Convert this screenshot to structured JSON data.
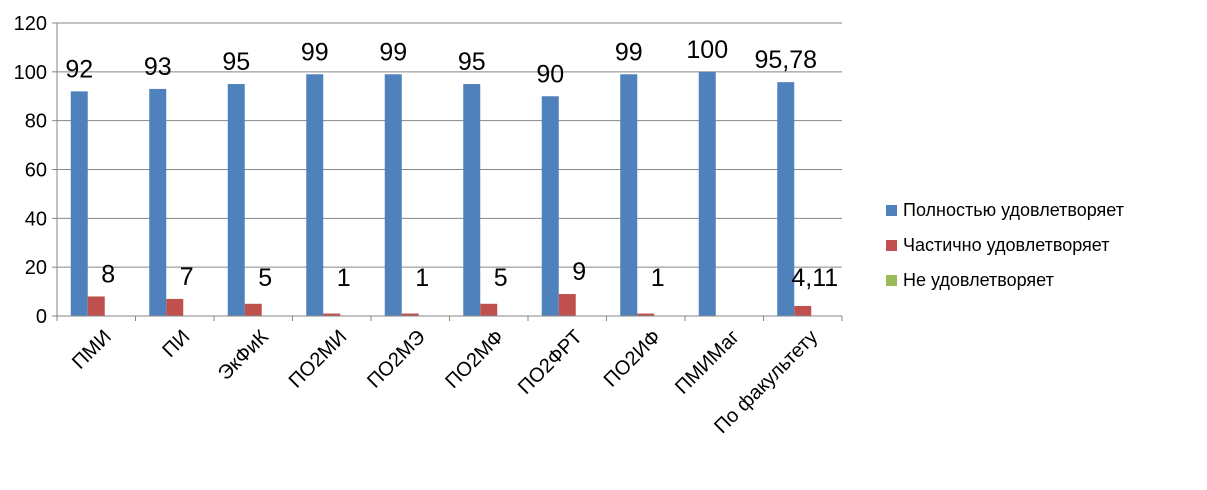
{
  "chart_data": {
    "type": "bar",
    "categories": [
      "ПМИ",
      "ПИ",
      "ЭкФиК",
      "ПО2МИ",
      "ПО2МЭ",
      "ПО2МФ",
      "ПО2ФРТ",
      "ПО2ИФ",
      "ПМИМаг",
      "По факультету"
    ],
    "series": [
      {
        "name": "Полностью удовлетворяет",
        "color": "#4F81BD",
        "values": [
          92,
          93,
          95,
          99,
          99,
          95,
          90,
          99,
          100,
          95.78
        ],
        "labels": [
          "92",
          "93",
          "95",
          "99",
          "99",
          "95",
          "90",
          "99",
          "100",
          "95,78"
        ]
      },
      {
        "name": "Частично удовлетворяет",
        "color": "#C0504D",
        "values": [
          8,
          7,
          5,
          1,
          1,
          5,
          9,
          1,
          0,
          4.11
        ],
        "labels": [
          "8",
          "7",
          "5",
          "1",
          "1",
          "5",
          "9",
          "1",
          "",
          "4,11"
        ]
      },
      {
        "name": "Не удовлетворяет",
        "color": "#9BBB59",
        "values": [
          0,
          0,
          0,
          0,
          0,
          0,
          0,
          0,
          0,
          0
        ],
        "labels": [
          "",
          "",
          "",
          "",
          "",
          "",
          "",
          "",
          "",
          ""
        ]
      }
    ],
    "ylim": [
      0,
      120
    ],
    "yticks": [
      0,
      20,
      40,
      60,
      80,
      100,
      120
    ],
    "grid": true,
    "legend_position": "right"
  }
}
